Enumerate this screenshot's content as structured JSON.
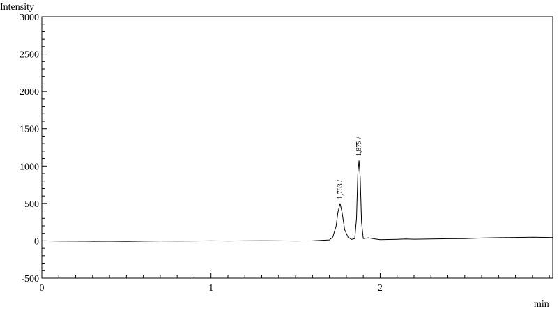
{
  "chart_data": {
    "type": "line",
    "title": "",
    "xlabel": "min",
    "ylabel": "Intensity",
    "xlim": [
      0,
      3.02
    ],
    "ylim": [
      -500,
      3000
    ],
    "x_ticks": [
      0,
      1,
      2
    ],
    "y_ticks": [
      -500,
      0,
      500,
      1000,
      1500,
      2000,
      2500,
      3000
    ],
    "y_tick_labels": [
      "-500",
      "0",
      "500",
      "1000",
      "1500",
      "2000",
      "2500",
      "3000"
    ],
    "grid": false,
    "legend": "none",
    "series": [
      {
        "color": "#000000",
        "x": [
          0.0,
          0.1,
          0.2,
          0.3,
          0.4,
          0.5,
          0.6,
          0.7,
          0.8,
          0.9,
          1.0,
          1.1,
          1.2,
          1.3,
          1.4,
          1.5,
          1.6,
          1.7,
          1.72,
          1.74,
          1.75,
          1.763,
          1.775,
          1.79,
          1.81,
          1.83,
          1.85,
          1.86,
          1.868,
          1.875,
          1.882,
          1.89,
          1.9,
          1.93,
          1.97,
          2.0,
          2.1,
          2.15,
          2.2,
          2.3,
          2.4,
          2.5,
          2.6,
          2.7,
          2.8,
          2.9,
          3.0,
          3.02
        ],
        "y": [
          0,
          -3,
          -4,
          -6,
          -5,
          -7,
          -4,
          -2,
          -3,
          -2,
          0,
          -2,
          0,
          2,
          0,
          -2,
          0,
          12,
          50,
          200,
          380,
          500,
          380,
          150,
          50,
          20,
          30,
          300,
          900,
          1075,
          850,
          250,
          30,
          40,
          25,
          15,
          20,
          25,
          22,
          25,
          28,
          30,
          38,
          42,
          45,
          48,
          45,
          44
        ]
      }
    ],
    "peak_labels": [
      {
        "x": 1.763,
        "y": 500,
        "text": "1,763 /"
      },
      {
        "x": 1.875,
        "y": 1075,
        "text": "1,875 /"
      }
    ]
  }
}
